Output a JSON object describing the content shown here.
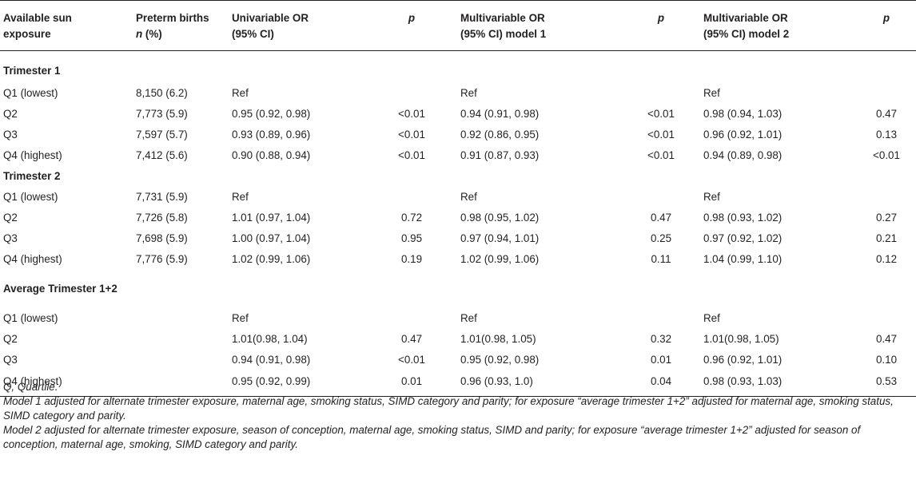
{
  "table": {
    "headers": {
      "exposure": [
        "Available sun",
        "exposure"
      ],
      "births_label": "Preterm births",
      "births_unit_n": "n",
      "births_unit_rest": " (%)",
      "uni_or": [
        "Univariable OR",
        "(95% CI)"
      ],
      "p1": "p",
      "multi1": [
        "Multivariable OR",
        "(95% CI) model 1"
      ],
      "p2": "p",
      "multi2": [
        "Multivariable OR",
        "(95% CI) model 2"
      ],
      "p3": "p"
    },
    "sections": [
      {
        "title": "Trimester 1",
        "rows": [
          {
            "q": "Q1 (lowest)",
            "births": "8,150 (6.2)",
            "uni": "Ref",
            "p1": "",
            "m1": "Ref",
            "p2": "",
            "m2": "Ref",
            "p3": ""
          },
          {
            "q": "Q2",
            "births": "7,773 (5.9)",
            "uni": "0.95 (0.92, 0.98)",
            "p1": "<0.01",
            "m1": "0.94 (0.91, 0.98)",
            "p2": "<0.01",
            "m2": "0.98 (0.94, 1.03)",
            "p3": "0.47"
          },
          {
            "q": "Q3",
            "births": "7,597 (5.7)",
            "uni": "0.93 (0.89, 0.96)",
            "p1": "<0.01",
            "m1": "0.92 (0.86, 0.95)",
            "p2": "<0.01",
            "m2": "0.96 (0.92, 1.01)",
            "p3": "0.13"
          },
          {
            "q": "Q4 (highest)",
            "births": "7,412 (5.6)",
            "uni": "0.90 (0.88, 0.94)",
            "p1": "<0.01",
            "m1": "0.91 (0.87, 0.93)",
            "p2": "<0.01",
            "m2": "0.94 (0.89, 0.98)",
            "p3": "<0.01"
          }
        ]
      },
      {
        "title": "Trimester 2",
        "rows": [
          {
            "q": "Q1 (lowest)",
            "births": "7,731 (5.9)",
            "uni": "Ref",
            "p1": "",
            "m1": "Ref",
            "p2": "",
            "m2": "Ref",
            "p3": ""
          },
          {
            "q": "Q2",
            "births": "7,726 (5.8)",
            "uni": "1.01 (0.97, 1.04)",
            "p1": "0.72",
            "m1": "0.98 (0.95, 1.02)",
            "p2": "0.47",
            "m2": "0.98 (0.93, 1.02)",
            "p3": "0.27"
          },
          {
            "q": "Q3",
            "births": "7,698 (5.9)",
            "uni": "1.00 (0.97, 1.04)",
            "p1": "0.95",
            "m1": "0.97 (0.94, 1.01)",
            "p2": "0.25",
            "m2": "0.97 (0.92, 1.02)",
            "p3": "0.21"
          },
          {
            "q": "Q4 (highest)",
            "births": "7,776 (5.9)",
            "uni": "1.02 (0.99, 1.06)",
            "p1": "0.19",
            "m1": "1.02 (0.99, 1.06)",
            "p2": "0.11",
            "m2": "1.04 (0.99, 1.10)",
            "p3": "0.12"
          }
        ]
      },
      {
        "title": "Average Trimester 1+2",
        "rows": [
          {
            "q": "Q1 (lowest)",
            "births": "",
            "uni": "Ref",
            "p1": "",
            "m1": "Ref",
            "p2": "",
            "m2": "Ref",
            "p3": ""
          },
          {
            "q": "Q2",
            "births": "",
            "uni": "1.01(0.98, 1.04)",
            "p1": "0.47",
            "m1": "1.01(0.98, 1.05)",
            "p2": "0.32",
            "m2": "1.01(0.98, 1.05)",
            "p3": "0.47"
          },
          {
            "q": "Q3",
            "births": "",
            "uni": "0.94 (0.91, 0.98)",
            "p1": "<0.01",
            "m1": "0.95 (0.92, 0.98)",
            "p2": "0.01",
            "m2": "0.96 (0.92, 1.01)",
            "p3": "0.10"
          },
          {
            "q": "Q4 (highest)",
            "births": "",
            "uni": "0.95 (0.92, 0.99)",
            "p1": "0.01",
            "m1": "0.96 (0.93, 1.0)",
            "p2": "0.04",
            "m2": "0.98 (0.93, 1.03)",
            "p3": "0.53"
          }
        ]
      }
    ]
  },
  "footnotes": [
    "Q, Quartile.",
    "Model 1 adjusted for alternate trimester exposure, maternal age, smoking status, SIMD category and parity; for exposure “average trimester 1+2” adjusted for maternal age, smoking status, SIMD category and parity.",
    "Model 2 adjusted for alternate trimester exposure, season of conception, maternal age, smoking status, SIMD and parity; for exposure “average trimester 1+2” adjusted for season of conception, maternal age, smoking, SIMD category and parity."
  ]
}
